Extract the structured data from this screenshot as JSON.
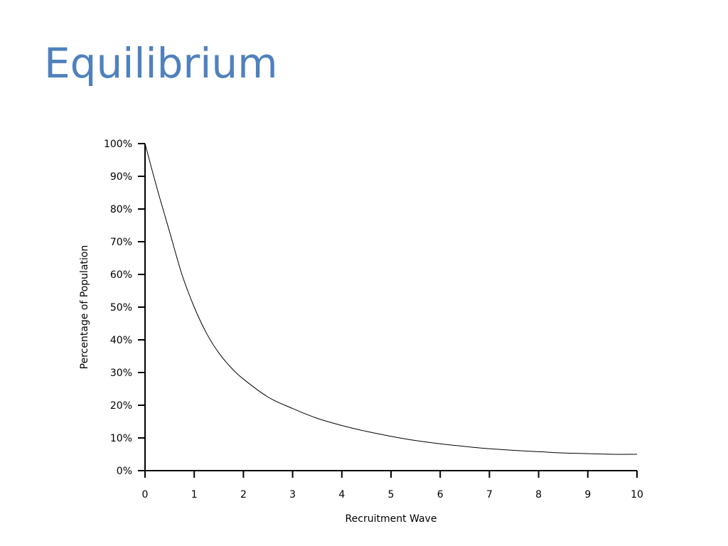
{
  "slide": {
    "title": "Equilibrium",
    "title_color": "#4f81bd"
  },
  "chart_data": {
    "type": "line",
    "title": "",
    "xlabel": "Recruitment Wave",
    "ylabel": "Percentage of Population",
    "xlim": [
      0,
      10
    ],
    "ylim": [
      0,
      100
    ],
    "x_ticks": [
      0,
      1,
      2,
      3,
      4,
      5,
      6,
      7,
      8,
      9,
      10
    ],
    "x_tick_labels": [
      "0",
      "1",
      "2",
      "3",
      "4",
      "5",
      "6",
      "7",
      "8",
      "9",
      "10"
    ],
    "y_ticks": [
      0,
      10,
      20,
      30,
      40,
      50,
      60,
      70,
      80,
      90,
      100
    ],
    "y_tick_labels": [
      "0%",
      "10%",
      "20%",
      "30%",
      "40%",
      "50%",
      "60%",
      "70%",
      "80%",
      "90%",
      "100%"
    ],
    "grid": false,
    "legend": "none",
    "line_color": "#000000",
    "series": [
      {
        "x": [
          0,
          0.25,
          0.5,
          0.75,
          1,
          1.25,
          1.5,
          1.75,
          2,
          2.5,
          3,
          3.5,
          4,
          4.5,
          5,
          5.5,
          6,
          6.5,
          7,
          7.5,
          8,
          8.5,
          9,
          9.5,
          10
        ],
        "y": [
          100,
          86,
          73,
          60,
          50,
          42,
          36,
          31.5,
          28,
          22.5,
          19,
          16,
          13.8,
          12,
          10.5,
          9.2,
          8.2,
          7.4,
          6.7,
          6.2,
          5.8,
          5.4,
          5.2,
          5.0,
          5.0
        ]
      }
    ]
  }
}
